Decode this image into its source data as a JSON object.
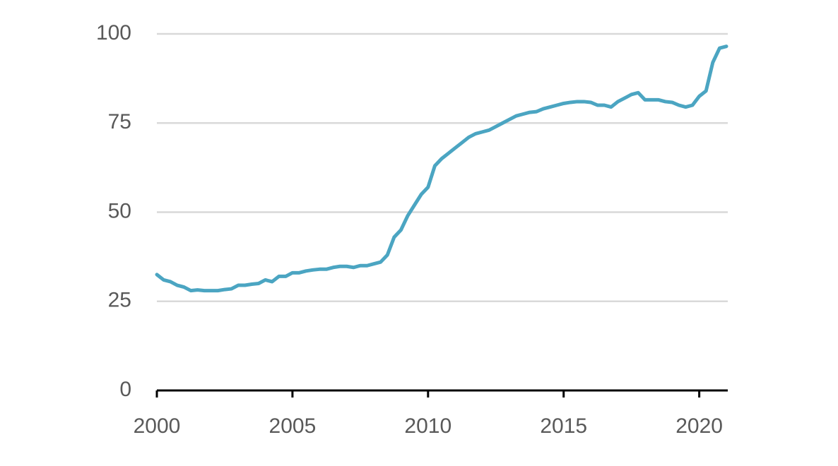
{
  "chart_data": {
    "type": "line",
    "x": [
      2000.0,
      2000.25,
      2000.5,
      2000.75,
      2001.0,
      2001.25,
      2001.5,
      2001.75,
      2002.0,
      2002.25,
      2002.5,
      2002.75,
      2003.0,
      2003.25,
      2003.5,
      2003.75,
      2004.0,
      2004.25,
      2004.5,
      2004.75,
      2005.0,
      2005.25,
      2005.5,
      2005.75,
      2006.0,
      2006.25,
      2006.5,
      2006.75,
      2007.0,
      2007.25,
      2007.5,
      2007.75,
      2008.0,
      2008.25,
      2008.5,
      2008.75,
      2009.0,
      2009.25,
      2009.5,
      2009.75,
      2010.0,
      2010.25,
      2010.5,
      2010.75,
      2011.0,
      2011.25,
      2011.5,
      2011.75,
      2012.0,
      2012.25,
      2012.5,
      2012.75,
      2013.0,
      2013.25,
      2013.5,
      2013.75,
      2014.0,
      2014.25,
      2014.5,
      2014.75,
      2015.0,
      2015.25,
      2015.5,
      2015.75,
      2016.0,
      2016.25,
      2016.5,
      2016.75,
      2017.0,
      2017.25,
      2017.5,
      2017.75,
      2018.0,
      2018.25,
      2018.5,
      2018.75,
      2019.0,
      2019.25,
      2019.5,
      2019.75,
      2020.0,
      2020.25,
      2020.5,
      2020.75,
      2021.0
    ],
    "series": [
      {
        "color": "#4ba5c2",
        "values": [
          32.5,
          31,
          30.5,
          29.5,
          29,
          28,
          28.2,
          28,
          28,
          28,
          28.3,
          28.5,
          29.5,
          29.5,
          29.8,
          30,
          31,
          30.5,
          32,
          32,
          33,
          33,
          33.5,
          33.8,
          34,
          34,
          34.5,
          34.8,
          34.8,
          34.5,
          35,
          35,
          35.5,
          36,
          38,
          43,
          45,
          49,
          52,
          55,
          57,
          63,
          65,
          66.5,
          68,
          69.5,
          71,
          72,
          72.5,
          73,
          74,
          75,
          76,
          77,
          77.5,
          78,
          78.2,
          79,
          79.5,
          80,
          80.5,
          80.8,
          81,
          81,
          80.8,
          80,
          80,
          79.5,
          81,
          82,
          83,
          83.5,
          81.5,
          81.5,
          81.5,
          81,
          80.8,
          80,
          79.5,
          80,
          82.5,
          84,
          92,
          96,
          96.5
        ]
      }
    ],
    "xlim": [
      2000,
      2021
    ],
    "xticks": [
      2000,
      2005,
      2010,
      2015,
      2020
    ],
    "ylim": [
      0,
      100
    ],
    "yticks": [
      0,
      25,
      50,
      75,
      100
    ],
    "grid": true
  }
}
